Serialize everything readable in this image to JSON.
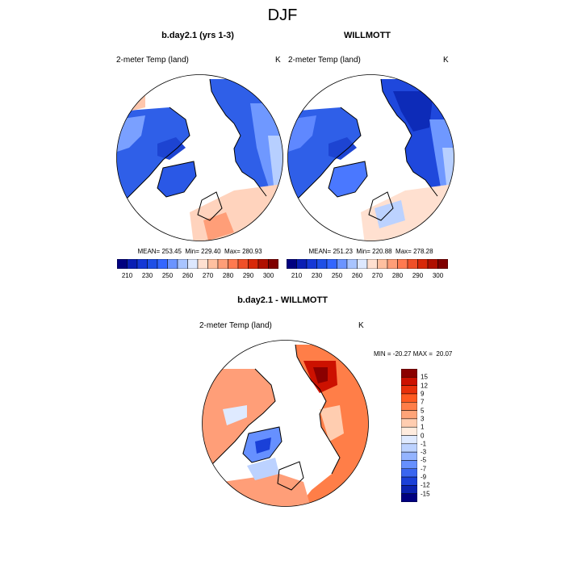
{
  "title": "DJF",
  "panels": [
    {
      "name": "model",
      "title": "b.day2.1 (yrs 1-3)",
      "variable": "2-meter Temp (land)",
      "units": "K",
      "stats": "MEAN= 253.45  Min= 229.40  Max= 280.93"
    },
    {
      "name": "obs",
      "title": "WILLMOTT",
      "variable": "2-meter Temp (land)",
      "units": "K",
      "stats": "MEAN= 251.23  Min= 220.88  Max= 278.28"
    },
    {
      "name": "diff",
      "title": "b.day2.1 - WILLMOTT",
      "variable": "2-meter Temp (land)",
      "units": "K",
      "stats": "MIN = -20.27 MAX =  20.07"
    }
  ],
  "abs_colorbar": {
    "colors": [
      "#000080",
      "#0a1fb4",
      "#1538d6",
      "#1f4fe6",
      "#3366ff",
      "#6b94ff",
      "#a8c4ff",
      "#dde8ff",
      "#ffe0d0",
      "#ffc0a0",
      "#ff9e78",
      "#ff7a50",
      "#f05028",
      "#d82808",
      "#b01000",
      "#800000"
    ],
    "tick_labels": [
      "210",
      "230",
      "250",
      "260",
      "270",
      "280",
      "290",
      "300"
    ]
  },
  "diff_colorbar": {
    "colors": [
      "#8b0000",
      "#cc1100",
      "#e8300a",
      "#ff5a20",
      "#ff7e48",
      "#ffa478",
      "#ffcdb0",
      "#ffecde",
      "#dfeaff",
      "#bcd2ff",
      "#94b4ff",
      "#6690ff",
      "#3a66f0",
      "#1a40d8",
      "#0a22b0",
      "#000080"
    ],
    "tick_labels": [
      "15",
      "12",
      "9",
      "7",
      "5",
      "3",
      "1",
      "0",
      "-1",
      "-3",
      "-5",
      "-7",
      "-9",
      "-12",
      "-15"
    ]
  }
}
